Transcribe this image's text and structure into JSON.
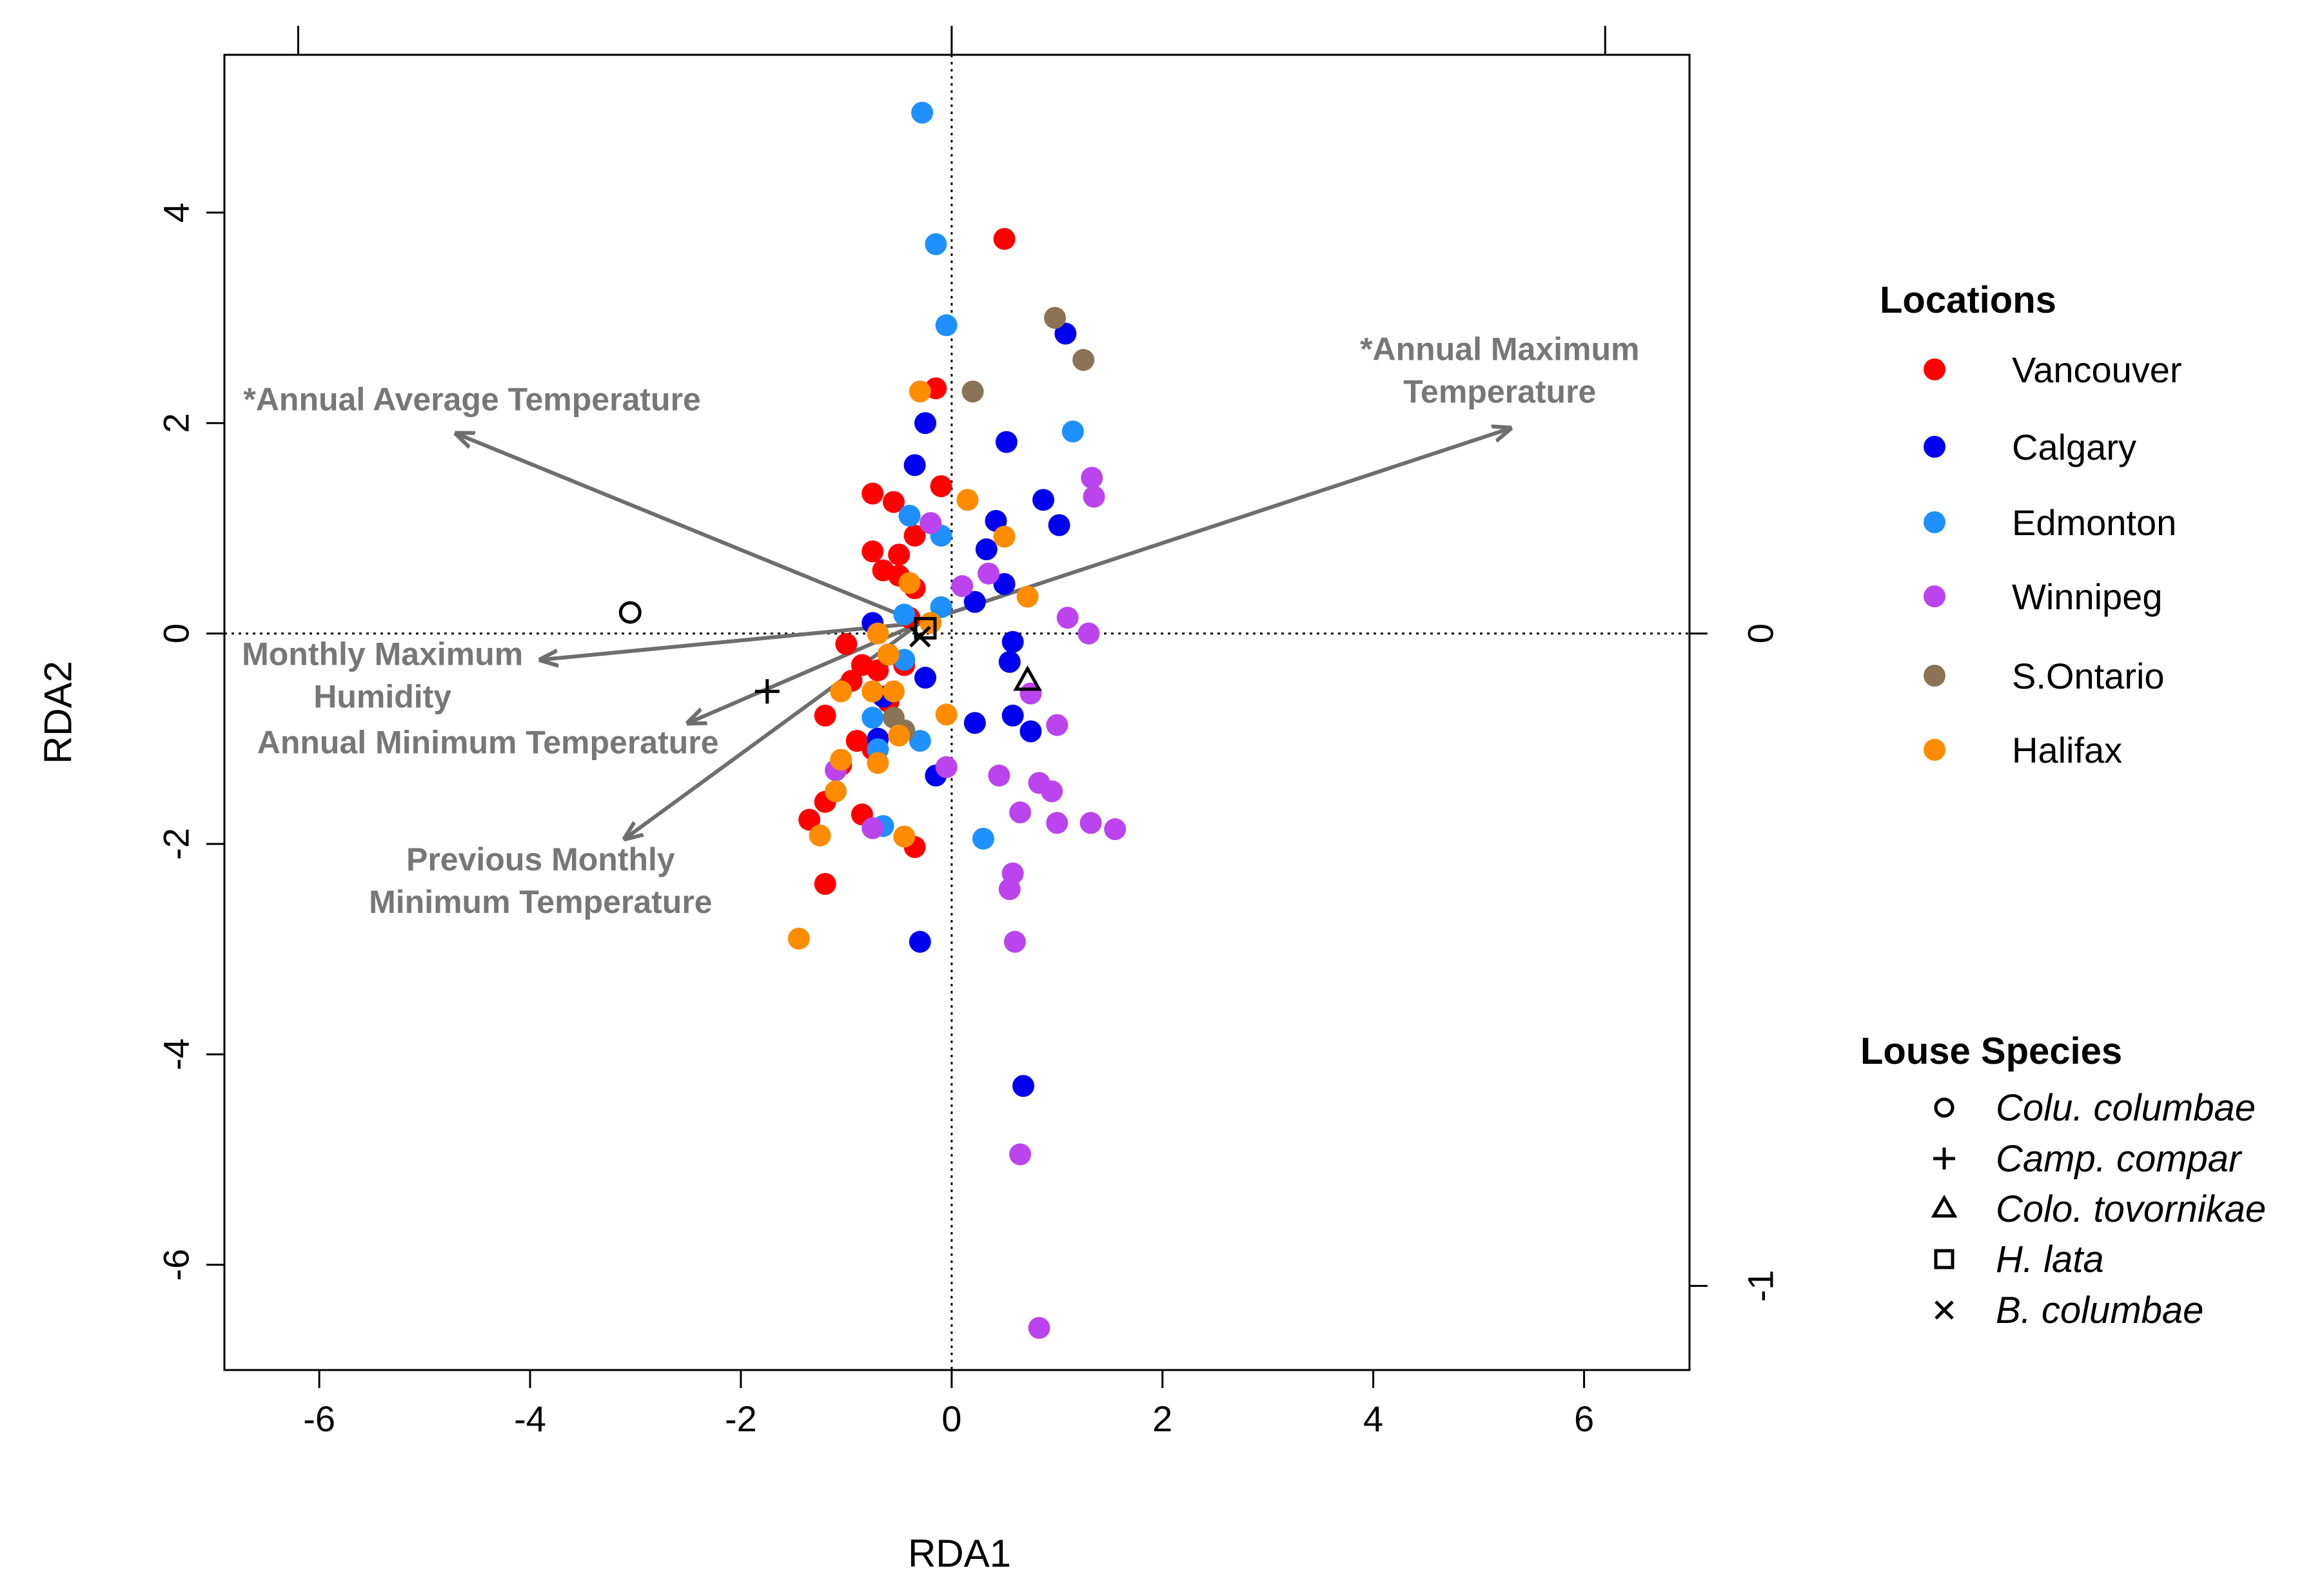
{
  "chart_data": {
    "type": "scatter",
    "subtype": "rda-biplot",
    "xlabel": "RDA1",
    "ylabel": "RDA2",
    "xlim": [
      -6.9,
      7.0
    ],
    "ylim": [
      -7.0,
      5.5
    ],
    "xticks": [
      "-6",
      "-4",
      "-2",
      "0",
      "2",
      "4",
      "6"
    ],
    "yticks": [
      "-6",
      "-4",
      "-2",
      "0",
      "2",
      "4"
    ],
    "x_tick_values": [
      -6,
      -4,
      -2,
      0,
      2,
      4,
      6
    ],
    "y_tick_values": [
      -6,
      -4,
      -2,
      0,
      2,
      4
    ],
    "secondary_y_ticks": [
      "0",
      "-1"
    ],
    "secondary_y_tick_positions": [
      0,
      -6.2
    ],
    "top_tick_positions": [
      -6.2,
      0,
      6.2
    ],
    "reference_lines": {
      "x": 0,
      "y": 0,
      "style": "dotted"
    },
    "series": [
      {
        "name": "Vancouver",
        "color": "#ff0000",
        "points": [
          [
            0.5,
            3.75
          ],
          [
            -0.15,
            2.33
          ],
          [
            -0.1,
            1.4
          ],
          [
            -0.75,
            1.33
          ],
          [
            -0.55,
            1.25
          ],
          [
            -0.35,
            0.93
          ],
          [
            -0.75,
            0.78
          ],
          [
            -0.5,
            0.75
          ],
          [
            -0.65,
            0.6
          ],
          [
            -0.5,
            0.55
          ],
          [
            -0.35,
            0.43
          ],
          [
            -1.0,
            -0.1
          ],
          [
            -0.85,
            -0.3
          ],
          [
            -0.6,
            -0.2
          ],
          [
            -0.7,
            -0.35
          ],
          [
            -0.95,
            -0.45
          ],
          [
            -0.6,
            -0.65
          ],
          [
            -1.2,
            -0.78
          ],
          [
            -0.9,
            -1.02
          ],
          [
            -0.75,
            -1.1
          ],
          [
            -1.05,
            -1.25
          ],
          [
            -1.2,
            -1.6
          ],
          [
            -0.85,
            -1.72
          ],
          [
            -1.35,
            -1.77
          ],
          [
            -0.35,
            -2.03
          ],
          [
            -1.2,
            -2.38
          ],
          [
            -0.4,
            0.15
          ],
          [
            -0.45,
            -0.3
          ]
        ]
      },
      {
        "name": "Calgary",
        "color": "#0000ee",
        "points": [
          [
            1.08,
            2.85
          ],
          [
            -0.25,
            2.0
          ],
          [
            0.52,
            1.82
          ],
          [
            -0.35,
            1.6
          ],
          [
            0.87,
            1.27
          ],
          [
            0.42,
            1.07
          ],
          [
            1.02,
            1.03
          ],
          [
            0.33,
            0.8
          ],
          [
            0.5,
            0.47
          ],
          [
            0.22,
            0.3
          ],
          [
            -0.75,
            0.1
          ],
          [
            0.58,
            -0.08
          ],
          [
            -0.65,
            -0.6
          ],
          [
            0.55,
            -0.27
          ],
          [
            -0.25,
            -0.42
          ],
          [
            0.58,
            -0.78
          ],
          [
            0.75,
            -0.93
          ],
          [
            0.22,
            -0.85
          ],
          [
            -0.15,
            -1.35
          ],
          [
            -0.7,
            -1.0
          ],
          [
            -0.3,
            -2.93
          ],
          [
            0.68,
            -4.3
          ]
        ]
      },
      {
        "name": "Edmonton",
        "color": "#1e90ff",
        "points": [
          [
            -0.28,
            4.95
          ],
          [
            -0.15,
            3.7
          ],
          [
            -0.05,
            2.93
          ],
          [
            1.15,
            1.92
          ],
          [
            -0.4,
            1.12
          ],
          [
            -0.1,
            0.93
          ],
          [
            -0.1,
            0.25
          ],
          [
            -0.45,
            0.18
          ],
          [
            -0.45,
            -0.25
          ],
          [
            -0.75,
            -0.8
          ],
          [
            -0.3,
            -1.02
          ],
          [
            -0.7,
            -1.1
          ],
          [
            0.3,
            -1.95
          ],
          [
            -0.65,
            -1.83
          ]
        ]
      },
      {
        "name": "Winnipeg",
        "color": "#bb44ee",
        "points": [
          [
            1.33,
            1.48
          ],
          [
            1.35,
            1.3
          ],
          [
            -0.2,
            1.05
          ],
          [
            0.35,
            0.57
          ],
          [
            0.1,
            0.45
          ],
          [
            1.1,
            0.15
          ],
          [
            1.3,
            0.0
          ],
          [
            0.75,
            -0.57
          ],
          [
            -0.05,
            -1.27
          ],
          [
            0.45,
            -1.35
          ],
          [
            1.0,
            -0.87
          ],
          [
            0.83,
            -1.42
          ],
          [
            0.95,
            -1.5
          ],
          [
            0.65,
            -1.7
          ],
          [
            1.0,
            -1.8
          ],
          [
            1.32,
            -1.8
          ],
          [
            1.55,
            -1.86
          ],
          [
            0.58,
            -2.28
          ],
          [
            0.55,
            -2.43
          ],
          [
            0.6,
            -2.93
          ],
          [
            0.65,
            -4.95
          ],
          [
            0.83,
            -6.6
          ],
          [
            -1.1,
            -1.3
          ],
          [
            -0.75,
            -1.85
          ]
        ]
      },
      {
        "name": "S.Ontario",
        "color": "#8b7355",
        "points": [
          [
            0.98,
            3.0
          ],
          [
            1.25,
            2.6
          ],
          [
            0.2,
            2.3
          ],
          [
            -0.55,
            -0.8
          ],
          [
            -0.45,
            -0.92
          ]
        ]
      },
      {
        "name": "Halifax",
        "color": "#ff8c00",
        "points": [
          [
            -0.3,
            2.3
          ],
          [
            0.15,
            1.27
          ],
          [
            0.5,
            0.92
          ],
          [
            -0.4,
            0.48
          ],
          [
            0.72,
            0.35
          ],
          [
            -0.2,
            0.1
          ],
          [
            -0.7,
            0.0
          ],
          [
            -0.6,
            -0.2
          ],
          [
            -0.75,
            -0.55
          ],
          [
            -0.55,
            -0.55
          ],
          [
            -1.05,
            -0.55
          ],
          [
            -0.05,
            -0.77
          ],
          [
            -0.5,
            -0.97
          ],
          [
            -1.05,
            -1.2
          ],
          [
            -0.7,
            -1.23
          ],
          [
            -1.1,
            -1.5
          ],
          [
            -1.25,
            -1.92
          ],
          [
            -0.45,
            -1.93
          ],
          [
            -1.45,
            -2.9
          ]
        ]
      }
    ],
    "species": [
      {
        "name": "Colu. columbae",
        "marker": "circle",
        "x": -3.05,
        "y": 0.2
      },
      {
        "name": "Camp. compar",
        "marker": "plus",
        "x": -1.75,
        "y": -0.55
      },
      {
        "name": "Colo. tovornikae",
        "marker": "triangle",
        "x": 0.72,
        "y": -0.45
      },
      {
        "name": "H. lata",
        "marker": "square",
        "x": -0.25,
        "y": 0.05
      },
      {
        "name": "B. columbae",
        "marker": "cross",
        "x": -0.3,
        "y": -0.03
      }
    ],
    "env_arrows": [
      {
        "lines": [
          "*Annual Average Temperature"
        ],
        "tip": [
          -4.7,
          1.9
        ],
        "label_at": [
          -4.55,
          2.12
        ]
      },
      {
        "lines": [
          "*Annual Maximum",
          "Temperature"
        ],
        "tip": [
          5.3,
          1.95
        ],
        "label_at": [
          5.2,
          2.6
        ]
      },
      {
        "lines": [
          "Monthly Maximum",
          "Humidity"
        ],
        "tip": [
          -3.9,
          -0.25
        ],
        "label_at": [
          -5.4,
          -0.3
        ]
      },
      {
        "lines": [
          "Annual Minimum Temperature"
        ],
        "tip": [
          -2.5,
          -0.85
        ],
        "label_at": [
          -4.4,
          -1.14
        ]
      },
      {
        "lines": [
          "Previous Monthly",
          "Minimum Temperature"
        ],
        "tip": [
          -3.1,
          -1.95
        ],
        "label_at": [
          -3.9,
          -2.25
        ]
      }
    ],
    "arrow_origin": [
      -0.3,
      0.1
    ],
    "legend_locations_title": "Locations",
    "legend_species_title": "Louse Species"
  }
}
